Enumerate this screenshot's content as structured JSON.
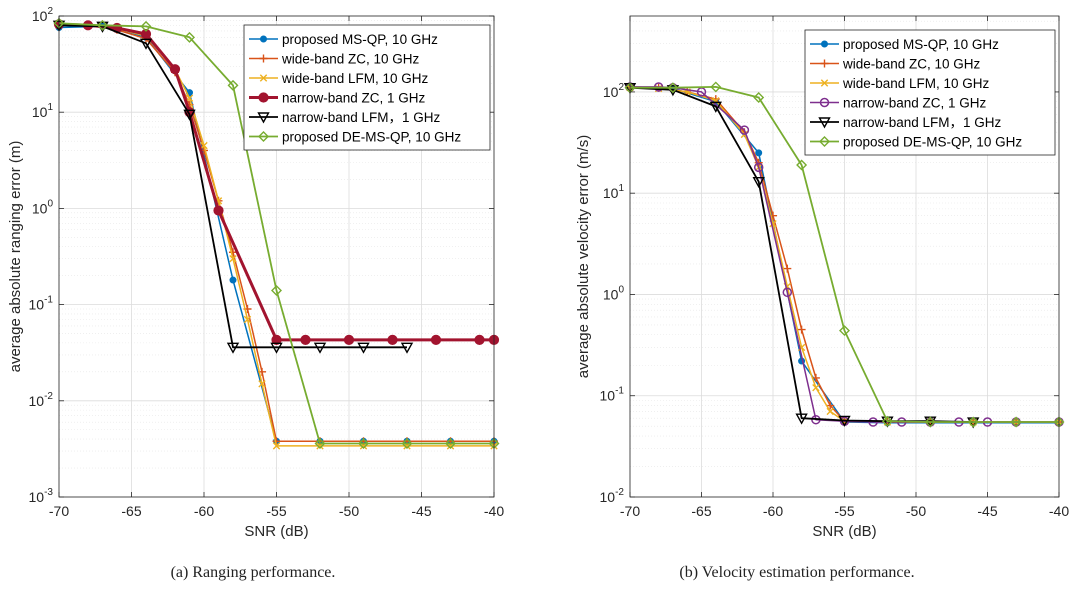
{
  "chart_data": [
    {
      "type": "line",
      "caption": "(a) Ranging performance.",
      "xlabel": "SNR (dB)",
      "ylabel": "average absolute ranging error (m)",
      "xlim": [
        -70,
        -40
      ],
      "ylim": [
        0.001,
        100
      ],
      "yscale": "log",
      "grid": true,
      "legend_position": "top-right",
      "x_ticks": [
        -70,
        -65,
        -60,
        -55,
        -50,
        -45,
        -40
      ],
      "y_ticks": [
        0.001,
        0.01,
        0.1,
        1,
        10,
        100
      ],
      "y_tick_labels": [
        {
          "base": "10",
          "exp": "-3"
        },
        {
          "base": "10",
          "exp": "-2"
        },
        {
          "base": "10",
          "exp": "-1"
        },
        {
          "base": "10",
          "exp": "0"
        },
        {
          "base": "10",
          "exp": "1"
        },
        {
          "base": "10",
          "exp": "2"
        }
      ],
      "series": [
        {
          "name": "proposed MS-QP, 10 GHz",
          "color": "#0072BD",
          "marker": "dot",
          "width": 1.5,
          "x": [
            -70,
            -67,
            -64,
            -61,
            -58,
            -55,
            -52,
            -49,
            -46,
            -43,
            -40
          ],
          "y": [
            76,
            78,
            60,
            16,
            0.18,
            0.0038,
            0.0038,
            0.0038,
            0.0038,
            0.0038,
            0.0038
          ]
        },
        {
          "name": "wide-band ZC, 10 GHz",
          "color": "#D95319",
          "marker": "plus",
          "width": 1.5,
          "x": [
            -70,
            -68,
            -66,
            -64,
            -62,
            -61,
            -60,
            -59,
            -58,
            -57,
            -56,
            -55,
            -52,
            -49,
            -46,
            -43,
            -40
          ],
          "y": [
            80,
            80,
            72,
            58,
            26,
            12,
            4,
            1.2,
            0.35,
            0.09,
            0.02,
            0.0038,
            0.0038,
            0.0038,
            0.0038,
            0.0038,
            0.0038
          ]
        },
        {
          "name": "wide-band LFM, 10 GHz",
          "color": "#EDB120",
          "marker": "x",
          "width": 1.5,
          "x": [
            -70,
            -68,
            -66,
            -64,
            -62,
            -61,
            -60,
            -59,
            -58,
            -57,
            -56,
            -55,
            -52,
            -49,
            -46,
            -43,
            -40
          ],
          "y": [
            82,
            80,
            74,
            62,
            28,
            14,
            4.5,
            1.2,
            0.3,
            0.07,
            0.015,
            0.0034,
            0.0034,
            0.0034,
            0.0034,
            0.0034,
            0.0034
          ]
        },
        {
          "name": "narrow-band ZC, 1 GHz",
          "color": "#A2142F",
          "marker": "circle",
          "width": 3,
          "x": [
            -70,
            -68,
            -66,
            -64,
            -62,
            -61,
            -59,
            -55,
            -53,
            -50,
            -47,
            -44,
            -41,
            -40
          ],
          "y": [
            82,
            80,
            75,
            65,
            28,
            10,
            0.95,
            0.043,
            0.043,
            0.043,
            0.043,
            0.043,
            0.043,
            0.043
          ]
        },
        {
          "name": "narrow-band LFM，1 GHz",
          "color": "#000000",
          "marker": "triangle-down",
          "width": 1.8,
          "x": [
            -70,
            -67,
            -64,
            -61,
            -58,
            -55,
            -52,
            -49,
            -46
          ],
          "y": [
            80,
            78,
            52,
            9.5,
            0.036,
            0.036,
            0.036,
            0.036,
            0.036
          ]
        },
        {
          "name": "proposed DE-MS-QP, 10 GHz",
          "color": "#77AC30",
          "marker": "diamond",
          "width": 1.8,
          "x": [
            -70,
            -67,
            -64,
            -61,
            -58,
            -55,
            -52,
            -49,
            -46,
            -43,
            -40
          ],
          "y": [
            84,
            80,
            78,
            60,
            19,
            0.14,
            0.0036,
            0.0036,
            0.0036,
            0.0036,
            0.0036
          ]
        }
      ]
    },
    {
      "type": "line",
      "caption": "(b) Velocity estimation performance.",
      "xlabel": "SNR (dB)",
      "ylabel": "average absolute velocity error (m/s)",
      "xlim": [
        -70,
        -40
      ],
      "ylim": [
        0.01,
        562
      ],
      "yscale": "log",
      "grid": true,
      "legend_position": "top-right",
      "x_ticks": [
        -70,
        -65,
        -60,
        -55,
        -50,
        -45,
        -40
      ],
      "y_ticks": [
        0.01,
        0.1,
        1,
        10,
        100
      ],
      "y_tick_labels": [
        {
          "base": "10",
          "exp": "-2"
        },
        {
          "base": "10",
          "exp": "-1"
        },
        {
          "base": "10",
          "exp": "0"
        },
        {
          "base": "10",
          "exp": "1"
        },
        {
          "base": "10",
          "exp": "2"
        }
      ],
      "series": [
        {
          "name": "proposed MS-QP, 10 GHz",
          "color": "#0072BD",
          "marker": "dot",
          "width": 1.5,
          "x": [
            -70,
            -67,
            -64,
            -61,
            -58,
            -55,
            -52,
            -49,
            -46,
            -43,
            -40
          ],
          "y": [
            110,
            108,
            80,
            25,
            0.22,
            0.055,
            0.054,
            0.054,
            0.054,
            0.054,
            0.054
          ]
        },
        {
          "name": "wide-band ZC, 10 GHz",
          "color": "#D95319",
          "marker": "plus",
          "width": 1.5,
          "x": [
            -70,
            -68,
            -66,
            -64,
            -62,
            -61,
            -60,
            -59,
            -58,
            -57,
            -56,
            -55,
            -52,
            -49,
            -46,
            -43,
            -40
          ],
          "y": [
            112,
            110,
            100,
            85,
            40,
            20,
            6,
            1.8,
            0.45,
            0.15,
            0.08,
            0.056,
            0.055,
            0.055,
            0.055,
            0.055,
            0.055
          ]
        },
        {
          "name": "wide-band LFM, 10 GHz",
          "color": "#EDB120",
          "marker": "x",
          "width": 1.5,
          "x": [
            -70,
            -68,
            -66,
            -64,
            -62,
            -61,
            -60,
            -59,
            -58,
            -57,
            -56,
            -55,
            -52,
            -49,
            -46,
            -43,
            -40
          ],
          "y": [
            110,
            108,
            100,
            82,
            38,
            18,
            5,
            1.2,
            0.3,
            0.12,
            0.07,
            0.056,
            0.055,
            0.055,
            0.055,
            0.055,
            0.055
          ]
        },
        {
          "name": "narrow-band ZC, 1 GHz",
          "color": "#7E2F8E",
          "marker": "circle-open",
          "width": 1.5,
          "x": [
            -70,
            -68,
            -67,
            -65,
            -62,
            -61,
            -59,
            -57,
            -55,
            -53,
            -51,
            -49,
            -47,
            -45,
            -43,
            -40
          ],
          "y": [
            112,
            112,
            110,
            100,
            42,
            18,
            1.05,
            0.058,
            0.056,
            0.055,
            0.055,
            0.055,
            0.055,
            0.055,
            0.055,
            0.055
          ]
        },
        {
          "name": "narrow-band LFM，1 GHz",
          "color": "#000000",
          "marker": "triangle-down",
          "width": 1.8,
          "x": [
            -70,
            -67,
            -64,
            -61,
            -58,
            -55,
            -52,
            -49,
            -46
          ],
          "y": [
            110,
            105,
            72,
            13,
            0.06,
            0.057,
            0.056,
            0.056,
            0.055
          ]
        },
        {
          "name": "proposed DE-MS-QP, 10 GHz",
          "color": "#77AC30",
          "marker": "diamond",
          "width": 1.8,
          "x": [
            -70,
            -67,
            -64,
            -61,
            -58,
            -55,
            -52,
            -49,
            -46,
            -43,
            -40
          ],
          "y": [
            110,
            110,
            112,
            88,
            19,
            0.44,
            0.056,
            0.055,
            0.055,
            0.055,
            0.055
          ]
        }
      ]
    }
  ]
}
